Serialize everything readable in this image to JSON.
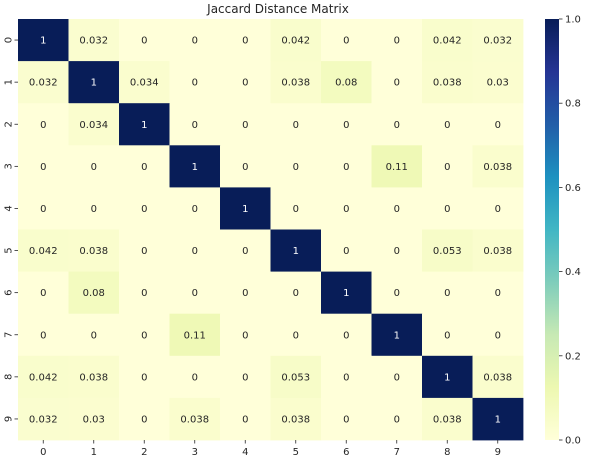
{
  "chart_data": {
    "type": "heatmap",
    "title": "Jaccard Distance Matrix",
    "x_labels": [
      "0",
      "1",
      "2",
      "3",
      "4",
      "5",
      "6",
      "7",
      "8",
      "9"
    ],
    "y_labels": [
      "0",
      "1",
      "2",
      "3",
      "4",
      "5",
      "6",
      "7",
      "8",
      "9"
    ],
    "values": [
      [
        1,
        0.032,
        0,
        0,
        0,
        0.042,
        0,
        0,
        0.042,
        0.032
      ],
      [
        0.032,
        1,
        0.034,
        0,
        0,
        0.038,
        0.08,
        0,
        0.038,
        0.03
      ],
      [
        0,
        0.034,
        1,
        0,
        0,
        0,
        0,
        0,
        0,
        0
      ],
      [
        0,
        0,
        0,
        1,
        0,
        0,
        0,
        0.11,
        0,
        0.038
      ],
      [
        0,
        0,
        0,
        0,
        1,
        0,
        0,
        0,
        0,
        0
      ],
      [
        0.042,
        0.038,
        0,
        0,
        0,
        1,
        0,
        0,
        0.053,
        0.038
      ],
      [
        0,
        0.08,
        0,
        0,
        0,
        0,
        1,
        0,
        0,
        0
      ],
      [
        0,
        0,
        0,
        0.11,
        0,
        0,
        0,
        1,
        0,
        0
      ],
      [
        0.042,
        0.038,
        0,
        0,
        0,
        0.053,
        0,
        0,
        1,
        0.038
      ],
      [
        0.032,
        0.03,
        0,
        0.038,
        0,
        0.038,
        0,
        0,
        0.038,
        1
      ]
    ],
    "colorscale": "YlGnBu",
    "vmin": 0,
    "vmax": 1,
    "colorbar_ticks": [
      0.0,
      0.2,
      0.4,
      0.6,
      0.8,
      1.0
    ],
    "colorbar_tick_labels": [
      "0.0",
      "0.2",
      "0.4",
      "0.6",
      "0.8",
      "1.0"
    ]
  }
}
